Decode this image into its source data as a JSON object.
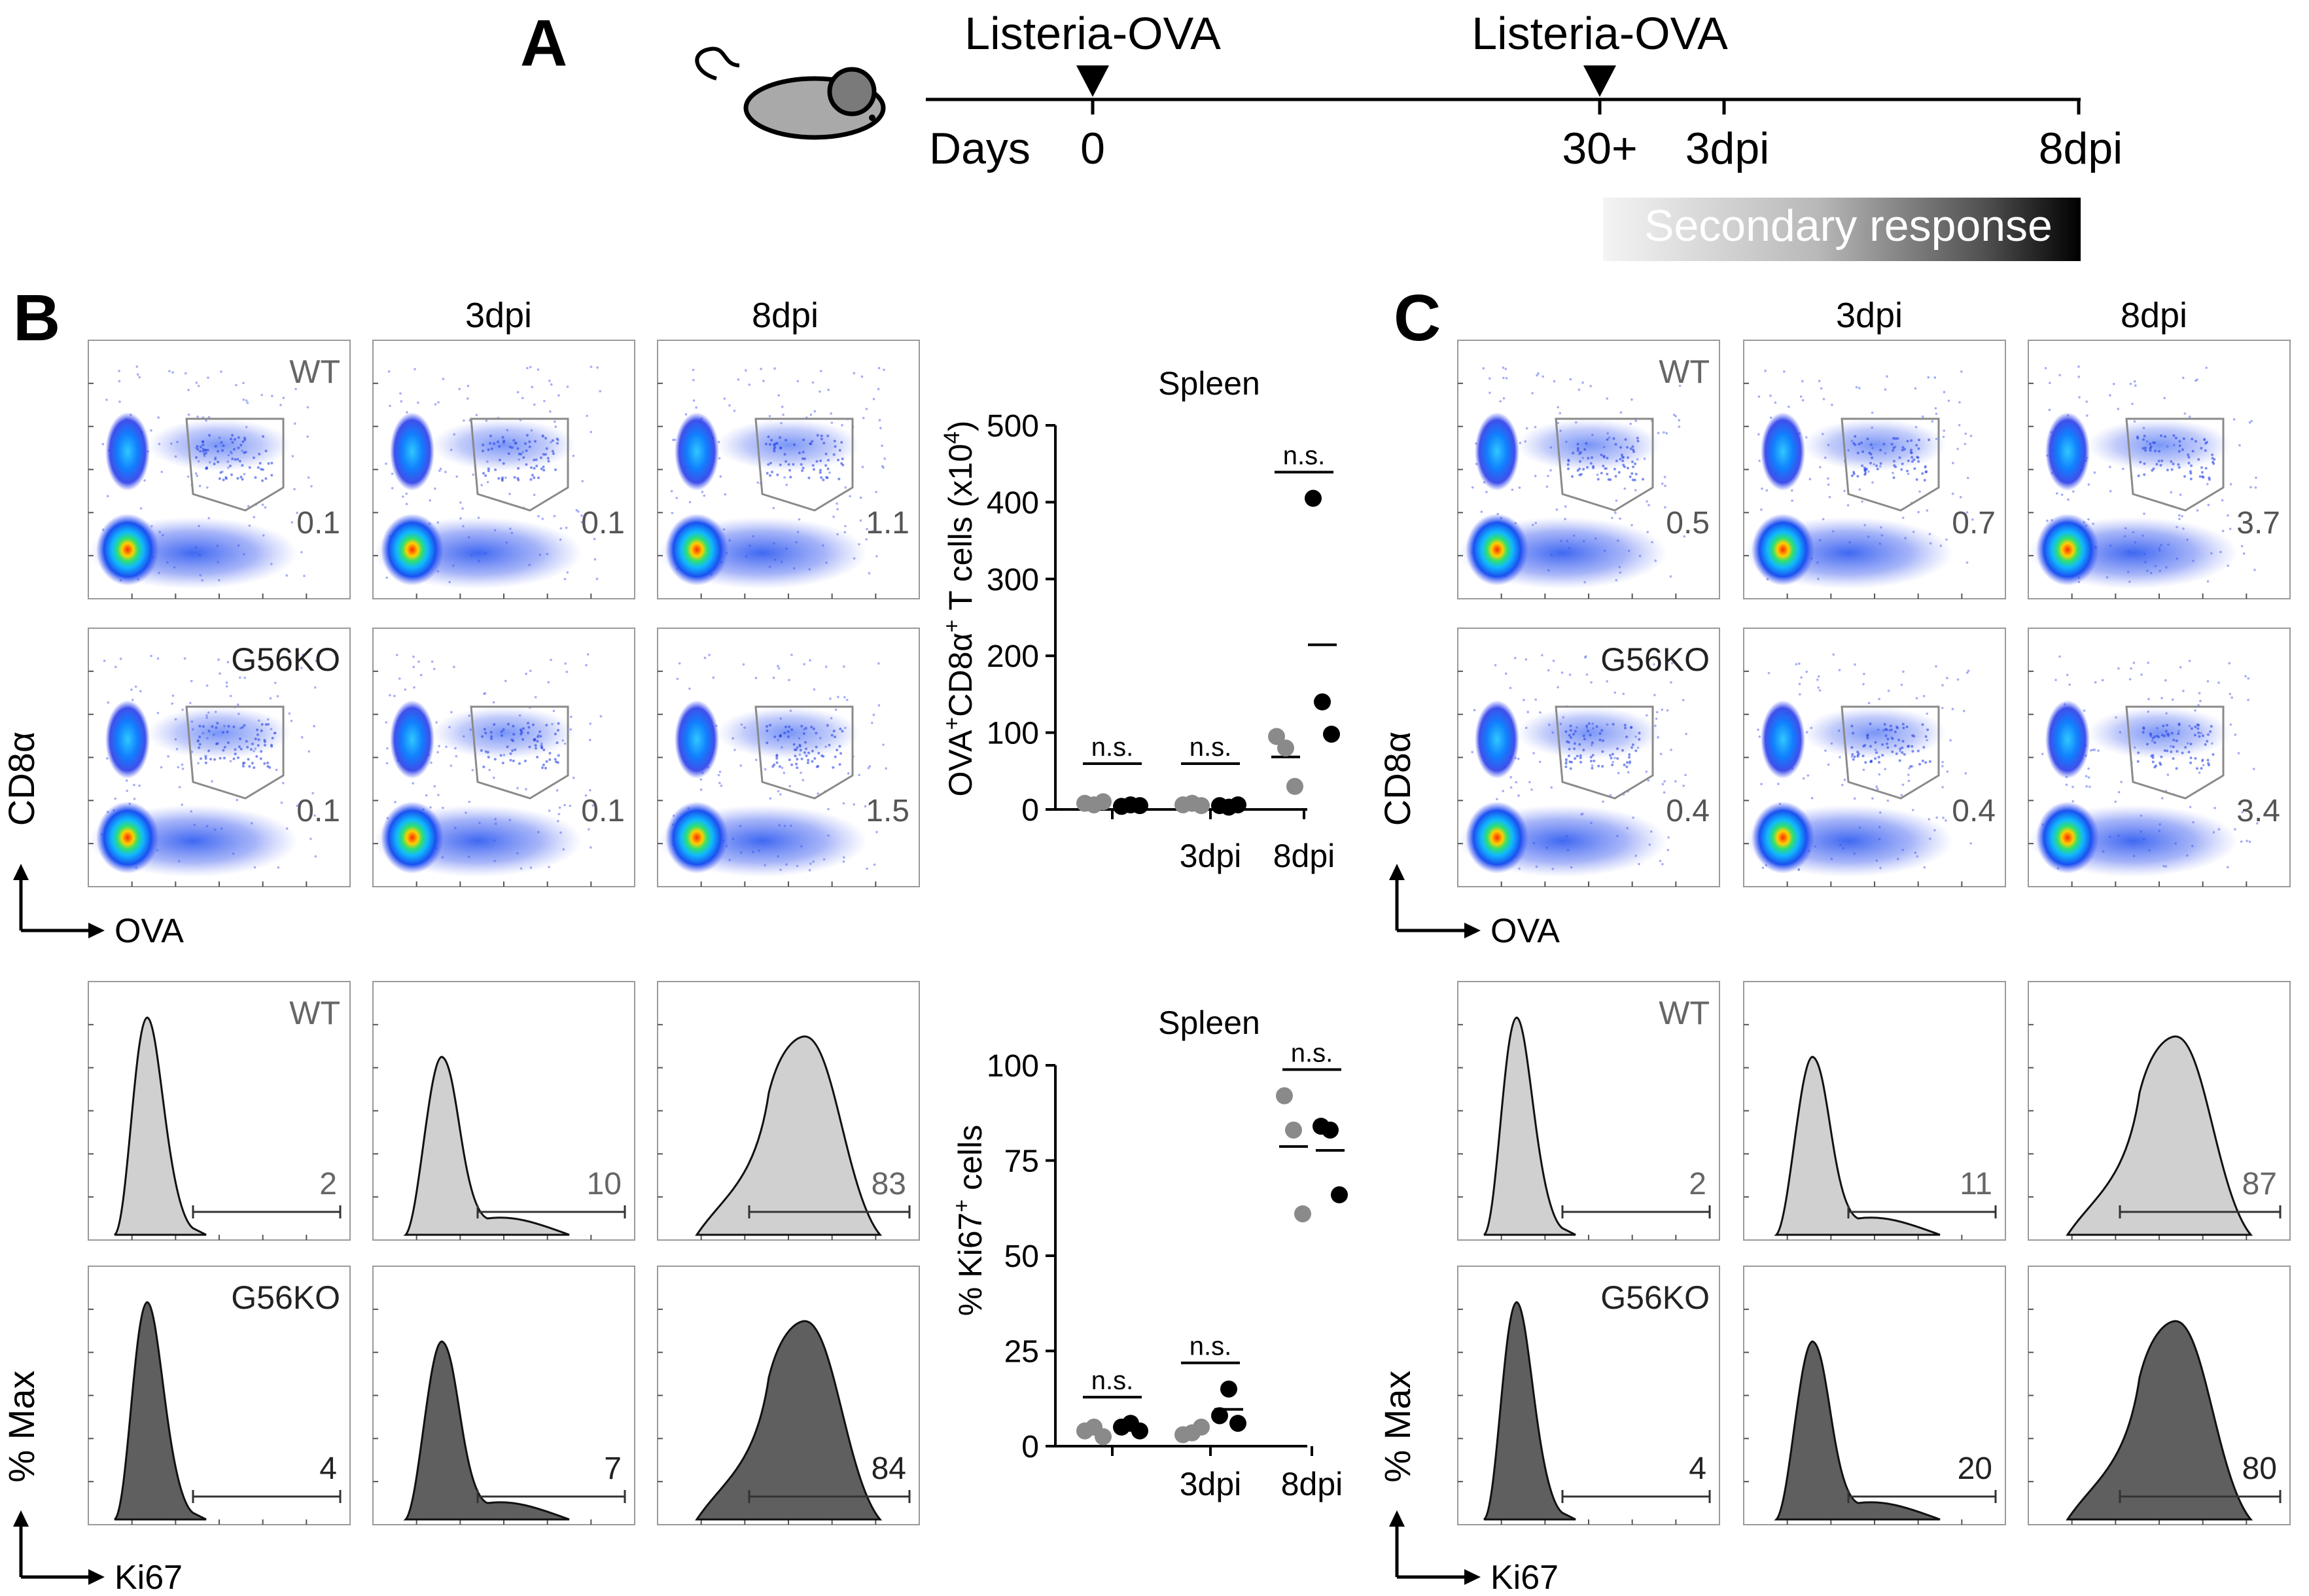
{
  "panels": {
    "A": "A",
    "B": "B",
    "C": "C"
  },
  "timeline": {
    "inoculation_label": "Listeria-OVA",
    "days_label": "Days",
    "ticks": [
      "0",
      "30+",
      "3dpi",
      "8dpi"
    ],
    "secondary_response": "Secondary response"
  },
  "flow": {
    "col_headers": [
      "3dpi",
      "8dpi"
    ],
    "rows": [
      "WT",
      "G56KO"
    ],
    "dot_axes": {
      "y": "CD8α",
      "x": "OVA"
    },
    "hist_axes": {
      "y": "% Max",
      "x": "Ki67"
    },
    "B_dot_values": [
      [
        "0.1",
        "0.1",
        "1.1"
      ],
      [
        "0.1",
        "0.1",
        "1.5"
      ]
    ],
    "C_dot_values": [
      [
        "0.5",
        "0.7",
        "3.7"
      ],
      [
        "0.4",
        "0.4",
        "3.4"
      ]
    ],
    "B_hist_values": [
      [
        "2",
        "10",
        "83"
      ],
      [
        "4",
        "7",
        "84"
      ]
    ],
    "C_hist_values": [
      [
        "2",
        "11",
        "87"
      ],
      [
        "4",
        "20",
        "80"
      ]
    ],
    "hist_fill": {
      "WT": "#d0d0d0",
      "G56KO": "#5f5f5f"
    }
  },
  "chart_data": [
    {
      "type": "scatter",
      "title": "Spleen",
      "ylabel": "OVA+CD8α+ T cells (x10^4)",
      "ylabel_parts": {
        "a": "OVA",
        "b": "CD8α",
        "c": " T cells (x10",
        "exp": "4",
        "d": ")"
      },
      "categories": [
        "",
        "3dpi",
        "8dpi"
      ],
      "ylim": [
        0,
        500
      ],
      "yticks": [
        "0",
        "100",
        "200",
        "300",
        "400",
        "500"
      ],
      "significance": [
        "n.s.",
        "n.s.",
        "n.s."
      ],
      "series": [
        {
          "name": "WT",
          "color": "#8a8a8a",
          "values": [
            [
              8,
              6,
              10
            ],
            [
              6,
              8,
              5
            ],
            [
              95,
              80,
              30
            ]
          ]
        },
        {
          "name": "G56KO",
          "color": "#000000",
          "values": [
            [
              4,
              6,
              5
            ],
            [
              5,
              3,
              6
            ],
            [
              405,
              140,
              98
            ]
          ]
        }
      ]
    },
    {
      "type": "scatter",
      "title": "Spleen",
      "ylabel": "% Ki67+ cells",
      "ylabel_parts": {
        "a": "% Ki67",
        "b": " cells"
      },
      "categories": [
        "",
        "3dpi",
        "8dpi"
      ],
      "ylim": [
        0,
        100
      ],
      "yticks": [
        "0",
        "25",
        "50",
        "75",
        "100"
      ],
      "significance": [
        "n.s.",
        "n.s.",
        "n.s."
      ],
      "series": [
        {
          "name": "WT",
          "color": "#8a8a8a",
          "values": [
            [
              4,
              5,
              2.5
            ],
            [
              3,
              3.5,
              5
            ],
            [
              92,
              83,
              61
            ]
          ]
        },
        {
          "name": "G56KO",
          "color": "#000000",
          "values": [
            [
              5,
              6,
              4
            ],
            [
              8,
              15,
              6
            ],
            [
              84,
              83,
              66
            ]
          ]
        }
      ]
    }
  ]
}
